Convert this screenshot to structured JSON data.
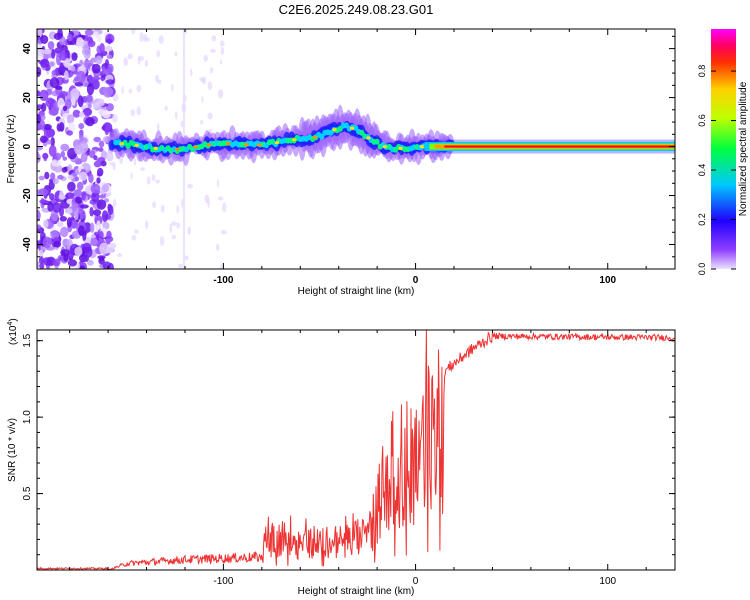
{
  "title": "C2E6.2025.249.08.23.G01",
  "chart_data": [
    {
      "type": "heatmap",
      "xlabel": "Height of straight line (km)",
      "ylabel": "Frequency (Hz)",
      "xlim": [
        -197,
        135
      ],
      "ylim": [
        -50,
        48
      ],
      "xticks": [
        -100,
        0,
        100
      ],
      "yticks": [
        -40,
        -20,
        0,
        20,
        40
      ],
      "colorbar": {
        "label": "Normalized spectral amplitude",
        "range": [
          0,
          0.97
        ],
        "ticks": [
          0.0,
          0.2,
          0.4,
          0.6,
          0.8
        ],
        "colormap": [
          "#e8d8ff",
          "#7000ff",
          "#0000ff",
          "#00e8ff",
          "#00ff00",
          "#ffff00",
          "#ff8000",
          "#ff0000",
          "#ff00ff"
        ]
      },
      "features": {
        "noise_band_x": [
          -197,
          -158
        ],
        "signal_start_x": -158,
        "signal_end_x": 135,
        "strong_line_start_x": 15,
        "strong_line_freq": 0,
        "bump_center_x": -35,
        "bump_peak_freq": 7
      }
    },
    {
      "type": "line",
      "xlabel": "Height of straight line (km)",
      "ylabel": "SNR (10 * v/v)",
      "yscale_label": "(x10",
      "yscale_exp": "4",
      "xlim": [
        -197,
        135
      ],
      "ylim": [
        0,
        1.57
      ],
      "xticks": [
        -100,
        0,
        100
      ],
      "yticks": [
        0.5,
        1.0,
        1.5
      ],
      "color": "#ee3333",
      "envelope": {
        "x": [
          -197,
          -160,
          -150,
          -120,
          -80,
          -78,
          -60,
          -40,
          -25,
          -20,
          -15,
          -5,
          0,
          5,
          10,
          20,
          30,
          40,
          135
        ],
        "y": [
          0.0,
          0.0,
          0.05,
          0.08,
          0.1,
          0.3,
          0.25,
          0.25,
          0.3,
          0.55,
          0.85,
          0.95,
          1.0,
          1.15,
          1.25,
          1.35,
          1.45,
          1.53,
          1.52
        ]
      }
    }
  ]
}
